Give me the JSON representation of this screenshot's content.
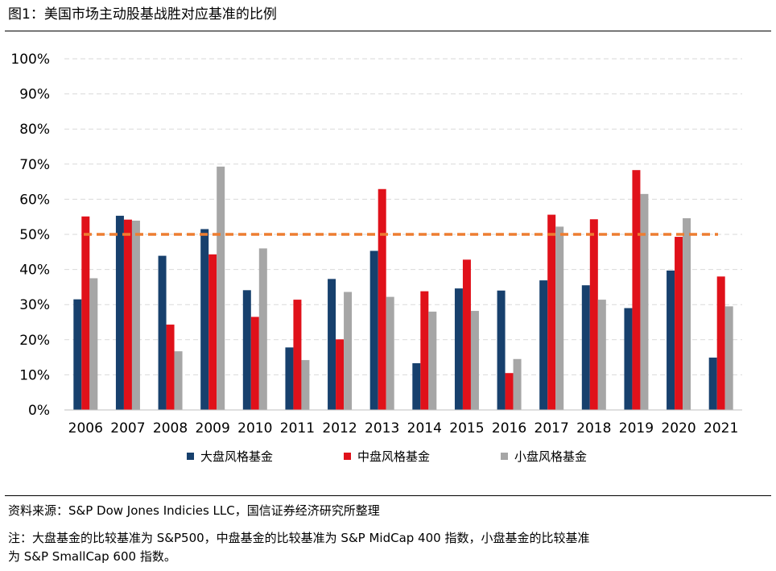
{
  "figure": {
    "title": "图1：美国市场主动股基战胜对应基准的比例",
    "source": "资料来源：S&P Dow Jones Indicies LLC，国信证券经济研究所整理",
    "note_line1": "注：大盘基金的比较基准为 S&P500，中盘基金的比较基准为 S&P MidCap 400 指数，小盘基金的比较基准",
    "note_line2": "为 S&P SmallCap 600 指数。"
  },
  "chart_data": {
    "type": "bar",
    "categories": [
      "2006",
      "2007",
      "2008",
      "2009",
      "2010",
      "2011",
      "2012",
      "2013",
      "2014",
      "2015",
      "2016",
      "2017",
      "2018",
      "2019",
      "2020",
      "2021"
    ],
    "series": [
      {
        "name": "大盘风格基金",
        "color": "#17406d",
        "values": [
          31.5,
          55.3,
          43.9,
          51.5,
          34.1,
          17.8,
          37.3,
          45.3,
          13.3,
          34.6,
          34.0,
          36.9,
          35.5,
          29.0,
          39.7,
          14.9
        ]
      },
      {
        "name": "中盘风格基金",
        "color": "#e0111a",
        "values": [
          55.1,
          54.2,
          24.3,
          44.3,
          26.5,
          31.4,
          20.1,
          62.9,
          33.8,
          42.8,
          10.5,
          55.6,
          54.3,
          68.3,
          49.3,
          38.0
        ]
      },
      {
        "name": "小盘风格基金",
        "color": "#a6a6a6",
        "values": [
          37.5,
          53.9,
          16.7,
          69.3,
          46.0,
          14.2,
          33.6,
          32.2,
          28.0,
          28.2,
          14.5,
          52.2,
          31.4,
          61.5,
          54.6,
          29.5
        ]
      }
    ],
    "reference_line": {
      "value": 50,
      "color": "#ed7d31",
      "style": "dashed"
    },
    "ylim": [
      0,
      100
    ],
    "yticks": [
      "0%",
      "10%",
      "20%",
      "30%",
      "40%",
      "50%",
      "60%",
      "70%",
      "80%",
      "90%",
      "100%"
    ],
    "grid": true,
    "legend_position": "bottom"
  }
}
